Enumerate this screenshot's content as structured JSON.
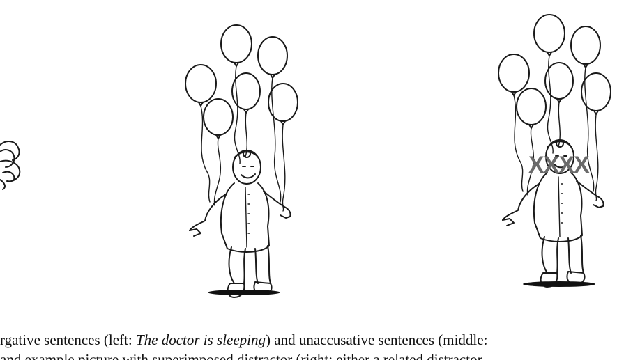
{
  "figure": {
    "panels": [
      "left",
      "middle",
      "right"
    ],
    "distractor_text": "XXXX"
  },
  "caption": {
    "line1": {
      "part1": "rgative sentences (left: ",
      "italic": "The doctor is sleeping",
      "part2": ") and unaccusative sentences (middle:"
    },
    "line2": "and example picture with superimposed distractor (right: either a related distractor"
  }
}
